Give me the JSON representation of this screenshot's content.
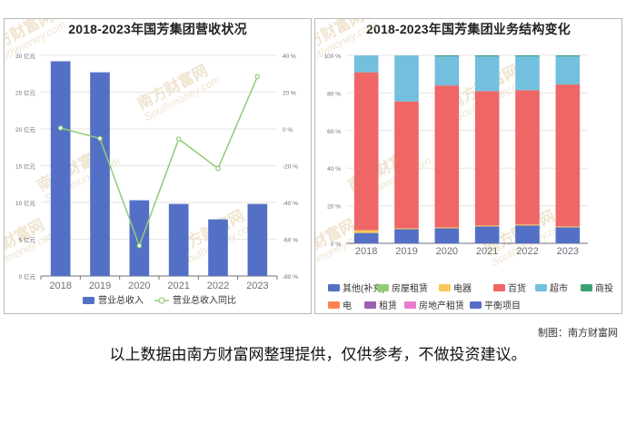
{
  "charts": [
    {
      "title": "2018-2023年国芳集团营收状况",
      "chart_data": {
        "type": "bar",
        "categories": [
          "2018",
          "2019",
          "2020",
          "2021",
          "2022",
          "2023"
        ],
        "series": [
          {
            "name": "营业总收入",
            "type": "bar",
            "axis": "left",
            "color": "#5470c6",
            "values": [
              29.2,
              27.7,
              10.3,
              9.8,
              7.7,
              9.8
            ]
          },
          {
            "name": "营业总收入同比",
            "type": "line",
            "axis": "right",
            "color": "#91cc75",
            "values": [
              0.5,
              -5.2,
              -63.5,
              -5.5,
              -21.5,
              28.5
            ]
          }
        ],
        "yleft": {
          "ticks": [
            "0 亿元",
            "5 亿元",
            "10 亿元",
            "15 亿元",
            "20 亿元",
            "25 亿元",
            "30 亿元"
          ],
          "lim": [
            0,
            30
          ]
        },
        "yright": {
          "ticks": [
            "-80 %",
            "-60 %",
            "-40 %",
            "-20 %",
            "0 %",
            "20 %",
            "40 %"
          ],
          "lim": [
            -80,
            40
          ]
        },
        "legend": "bottom"
      }
    },
    {
      "title": "2018-2023年国芳集团业务结构变化",
      "chart_data": {
        "type": "bar",
        "stacked": true,
        "categories": [
          "2018",
          "2019",
          "2020",
          "2021",
          "2022",
          "2023"
        ],
        "yaxis": {
          "ticks": [
            "0 %",
            "20 %",
            "40 %",
            "60 %",
            "80 %",
            "100 %"
          ],
          "lim": [
            0,
            100
          ]
        },
        "series": [
          {
            "name": "平衡项目",
            "color": "#5470c6",
            "values": [
              5.5,
              7.5,
              8.0,
              9.0,
              9.5,
              8.5
            ]
          },
          {
            "name": "电器",
            "color": "#fac858",
            "values": [
              1.5,
              0.5,
              0.5,
              0.5,
              0.5,
              0.5
            ]
          },
          {
            "name": "百货",
            "color": "#ee6666",
            "values": [
              84.0,
              67.5,
              75.5,
              71.5,
              71.5,
              75.5
            ]
          },
          {
            "name": "超市",
            "color": "#73c0de",
            "values": [
              9.0,
              24.5,
              15.5,
              18.5,
              18.0,
              15.0
            ]
          },
          {
            "name": "商投",
            "color": "#3ba272",
            "values": [
              0.0,
              0.0,
              0.5,
              0.5,
              0.5,
              0.5
            ]
          }
        ],
        "legend_items": [
          {
            "name": "其他(补充)",
            "color": "#5470c6"
          },
          {
            "name": "房屋租赁",
            "color": "#91cc75"
          },
          {
            "name": "电器",
            "color": "#fac858"
          },
          {
            "name": "百货",
            "color": "#ee6666"
          },
          {
            "name": "超市",
            "color": "#73c0de"
          },
          {
            "name": "商投",
            "color": "#3ba272"
          },
          {
            "name": "电",
            "color": "#fc8452"
          },
          {
            "name": "租赁",
            "color": "#9a60b4"
          },
          {
            "name": "房地产租赁",
            "color": "#ea7ccc"
          },
          {
            "name": "平衡项目",
            "color": "#5470c6"
          }
        ],
        "legend": "bottom"
      }
    }
  ],
  "watermark": {
    "cn": "南方财富网",
    "en": "Southmoney.com"
  },
  "credit": "制图：南方财富网",
  "note": "以上数据由南方财富网整理提供，仅供参考，不做投资建议。"
}
